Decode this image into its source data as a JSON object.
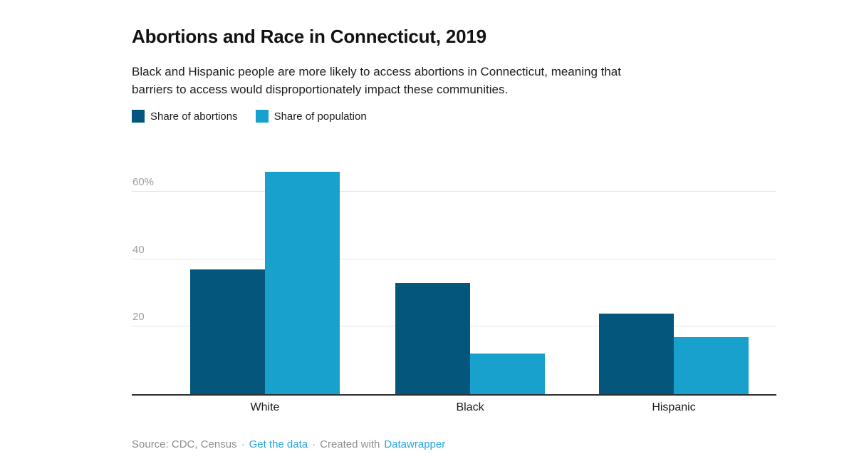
{
  "header": {
    "title": "Abortions and Race in Connecticut, 2019",
    "description_lines": [
      "Black and Hispanic people are more likely to access abortions in Connecticut, meaning that",
      "barriers to access would disproportionately impact these communities."
    ]
  },
  "legend": {
    "items": [
      {
        "label": "Share of abortions",
        "color": "#05567d"
      },
      {
        "label": "Share of population",
        "color": "#18a1cd"
      }
    ]
  },
  "chart_data": {
    "type": "bar",
    "title": "Abortions and Race in Connecticut, 2019",
    "categories": [
      "White",
      "Black",
      "Hispanic"
    ],
    "series": [
      {
        "name": "Share of abortions",
        "color": "#05567d",
        "values": [
          37,
          33,
          24
        ]
      },
      {
        "name": "Share of population",
        "color": "#18a1cd",
        "values": [
          66,
          12,
          17
        ]
      }
    ],
    "xlabel": "",
    "ylabel": "",
    "y_axis": {
      "max": 70,
      "ticks": [
        {
          "value": 20,
          "label": "20"
        },
        {
          "value": 40,
          "label": "40"
        },
        {
          "value": 60,
          "label": "60%"
        }
      ]
    },
    "grid": true,
    "legend_position": "top",
    "colors": {
      "dark_blue": "#05567d",
      "light_blue": "#18a1cd"
    }
  },
  "footer": {
    "source_label": "Source: CDC, Census",
    "separator": "·",
    "get_data_label": "Get the data",
    "created_with_label": "Created with",
    "datawrapper_label": "Datawrapper",
    "link_color": "#29a4dd"
  }
}
